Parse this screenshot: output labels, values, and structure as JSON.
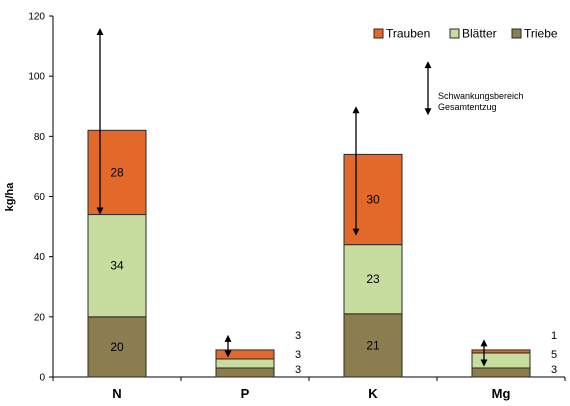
{
  "chart_data": {
    "type": "bar",
    "stacked": true,
    "categories": [
      "N",
      "P",
      "K",
      "Mg"
    ],
    "ylabel": "kg/ha",
    "ylim": [
      0,
      120
    ],
    "yticks": [
      0,
      20,
      40,
      60,
      80,
      100,
      120
    ],
    "grid": false,
    "legend_position": "top-right",
    "series": [
      {
        "name": "Triebe",
        "color": "#8b7d4e",
        "values": [
          20,
          3,
          21,
          3
        ]
      },
      {
        "name": "Blätter",
        "color": "#c7dd9f",
        "values": [
          34,
          3,
          23,
          5
        ]
      },
      {
        "name": "Trauben",
        "color": "#e2692a",
        "values": [
          28,
          3,
          30,
          1
        ]
      }
    ],
    "segment_labels": [
      [
        "20",
        "34",
        "28"
      ],
      [
        "3",
        "3",
        "3"
      ],
      [
        "21",
        "23",
        "30"
      ],
      [
        "3",
        "5",
        "1"
      ]
    ],
    "range_arrows": [
      {
        "category": "N",
        "low": 54,
        "high": 116
      },
      {
        "category": "P",
        "low": 6.5,
        "high": 14
      },
      {
        "category": "K",
        "low": 47,
        "high": 90
      },
      {
        "category": "Mg",
        "low": 3.5,
        "high": 12.5
      }
    ],
    "annotation": {
      "lines": [
        "Schwankungsbereich",
        "Gesamtentzug"
      ]
    }
  }
}
